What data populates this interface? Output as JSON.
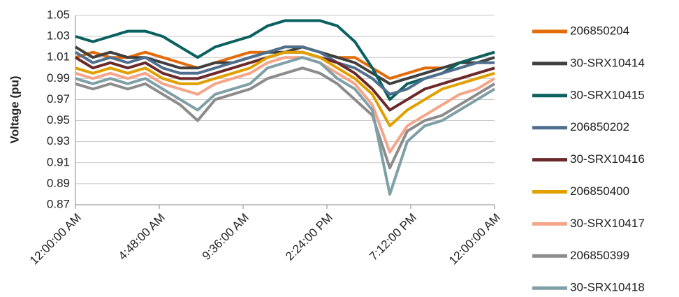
{
  "chart_data": {
    "type": "line",
    "y_label": "Voltage (pu)",
    "xlim": [
      0,
      24
    ],
    "xticks": [
      {
        "value": 0,
        "label": "12:00:00 AM"
      },
      {
        "value": 4.8,
        "label": "4:48:00 AM"
      },
      {
        "value": 9.6,
        "label": "9:36:00 AM"
      },
      {
        "value": 14.4,
        "label": "2:24:00 PM"
      },
      {
        "value": 19.2,
        "label": "7:12:00 PM"
      },
      {
        "value": 24,
        "label": "12:00:00 AM"
      }
    ],
    "ylim": [
      0.87,
      1.05
    ],
    "yticks": [
      0.87,
      0.89,
      0.91,
      0.93,
      0.95,
      0.97,
      0.99,
      1.01,
      1.03,
      1.05
    ],
    "grid": true,
    "legend": "right",
    "x": [
      0,
      1,
      2,
      3,
      4,
      5,
      6,
      7,
      8,
      9,
      10,
      11,
      12,
      13,
      14,
      15,
      16,
      17,
      18,
      19,
      20,
      21,
      22,
      23,
      24
    ],
    "series": [
      {
        "name": "206850204",
        "color": "#e36c0a",
        "values": [
          1.01,
          1.015,
          1.01,
          1.01,
          1.015,
          1.01,
          1.005,
          1.0,
          1.005,
          1.01,
          1.015,
          1.015,
          1.02,
          1.02,
          1.015,
          1.01,
          1.01,
          1.0,
          0.99,
          0.995,
          1.0,
          1.0,
          1.005,
          1.01,
          1.015
        ]
      },
      {
        "name": "30-SRX10414",
        "color": "#404040",
        "values": [
          1.02,
          1.01,
          1.015,
          1.01,
          1.01,
          1.005,
          1.0,
          1.0,
          1.005,
          1.005,
          1.01,
          1.015,
          1.015,
          1.02,
          1.015,
          1.01,
          1.005,
          0.995,
          0.985,
          0.99,
          0.995,
          1.0,
          1.005,
          1.005,
          1.01
        ]
      },
      {
        "name": "30-SRX10415",
        "color": "#0b6060",
        "values": [
          1.03,
          1.025,
          1.03,
          1.035,
          1.035,
          1.03,
          1.02,
          1.01,
          1.02,
          1.025,
          1.03,
          1.04,
          1.045,
          1.045,
          1.045,
          1.04,
          1.025,
          1.0,
          0.97,
          0.985,
          0.99,
          0.995,
          1.005,
          1.01,
          1.015
        ]
      },
      {
        "name": "206850202",
        "color": "#4f6f8f",
        "values": [
          1.015,
          1.005,
          1.01,
          1.005,
          1.01,
          1.0,
          0.995,
          0.995,
          1.0,
          1.005,
          1.01,
          1.015,
          1.02,
          1.02,
          1.015,
          1.005,
          1.0,
          0.99,
          0.975,
          0.98,
          0.99,
          0.995,
          1.0,
          1.005,
          1.005
        ]
      },
      {
        "name": "30-SRX10416",
        "color": "#6b2a2a",
        "values": [
          1.01,
          1.0,
          1.005,
          1.0,
          1.005,
          0.995,
          0.99,
          0.99,
          0.995,
          1.0,
          1.005,
          1.01,
          1.015,
          1.015,
          1.01,
          1.005,
          0.995,
          0.98,
          0.96,
          0.97,
          0.98,
          0.985,
          0.99,
          0.995,
          1.0
        ]
      },
      {
        "name": "206850400",
        "color": "#e0a000",
        "values": [
          1.0,
          0.995,
          1.0,
          0.995,
          1.0,
          0.99,
          0.985,
          0.985,
          0.99,
          0.995,
          1.0,
          1.01,
          1.015,
          1.015,
          1.01,
          1.0,
          0.99,
          0.975,
          0.945,
          0.96,
          0.97,
          0.98,
          0.985,
          0.99,
          0.995
        ]
      },
      {
        "name": "30-SRX10417",
        "color": "#f4a58a",
        "values": [
          0.995,
          0.99,
          0.995,
          0.99,
          0.995,
          0.985,
          0.98,
          0.975,
          0.985,
          0.99,
          0.995,
          1.005,
          1.01,
          1.01,
          1.005,
          0.995,
          0.985,
          0.965,
          0.92,
          0.945,
          0.955,
          0.965,
          0.975,
          0.98,
          0.99
        ]
      },
      {
        "name": "206850399",
        "color": "#8c8c8c",
        "values": [
          0.985,
          0.98,
          0.985,
          0.98,
          0.985,
          0.975,
          0.965,
          0.95,
          0.97,
          0.975,
          0.98,
          0.99,
          0.995,
          1.0,
          0.995,
          0.985,
          0.97,
          0.955,
          0.905,
          0.94,
          0.95,
          0.955,
          0.965,
          0.975,
          0.985
        ]
      },
      {
        "name": "30-SRX10418",
        "color": "#7fa0a6",
        "values": [
          0.99,
          0.985,
          0.99,
          0.985,
          0.99,
          0.98,
          0.97,
          0.96,
          0.975,
          0.98,
          0.985,
          1.0,
          1.005,
          1.01,
          1.005,
          0.99,
          0.98,
          0.96,
          0.88,
          0.93,
          0.945,
          0.95,
          0.96,
          0.97,
          0.98
        ]
      }
    ]
  }
}
